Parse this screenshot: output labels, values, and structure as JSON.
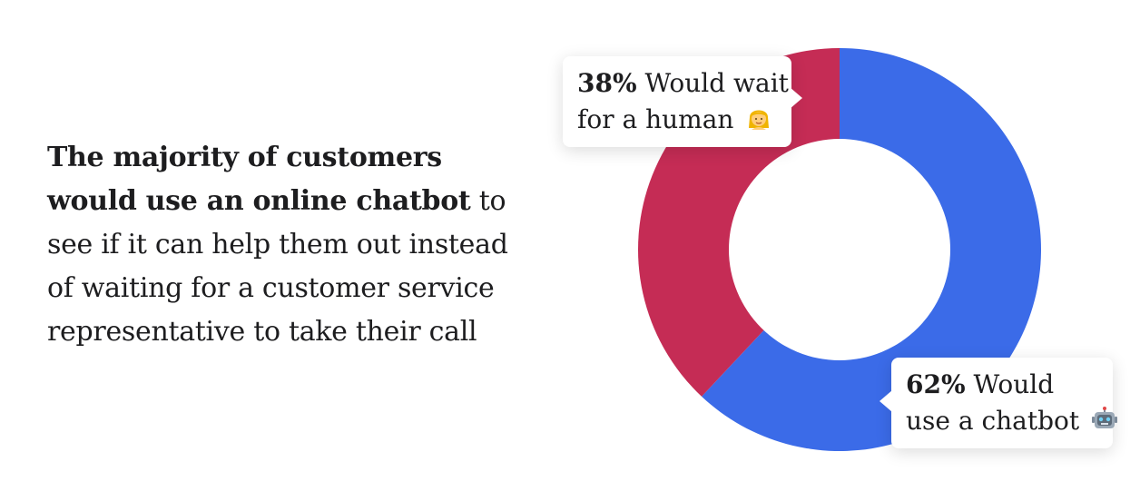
{
  "headline": {
    "bold_text": "The majority of customers would use an online chatbot",
    "regular_text": " to see if it can help them out instead of waiting for a customer service representative to take their call"
  },
  "callouts": {
    "human": {
      "percent": "38%",
      "text_line1": " Would wait",
      "text_line2": "for a human",
      "emoji": "woman-icon"
    },
    "chatbot": {
      "percent": "62%",
      "text_line1": " Would",
      "text_line2": "use a chatbot",
      "emoji": "robot-icon"
    }
  },
  "colors": {
    "chatbot": "#3b6be8",
    "human": "#c52c55",
    "background": "#ffffff"
  },
  "chart_data": {
    "type": "pie",
    "donut": true,
    "categories": [
      "Would use a chatbot",
      "Would wait for a human"
    ],
    "values": [
      62,
      38
    ],
    "start": "12 o'clock, clockwise",
    "title": "",
    "xlabel": "",
    "ylabel": ""
  }
}
